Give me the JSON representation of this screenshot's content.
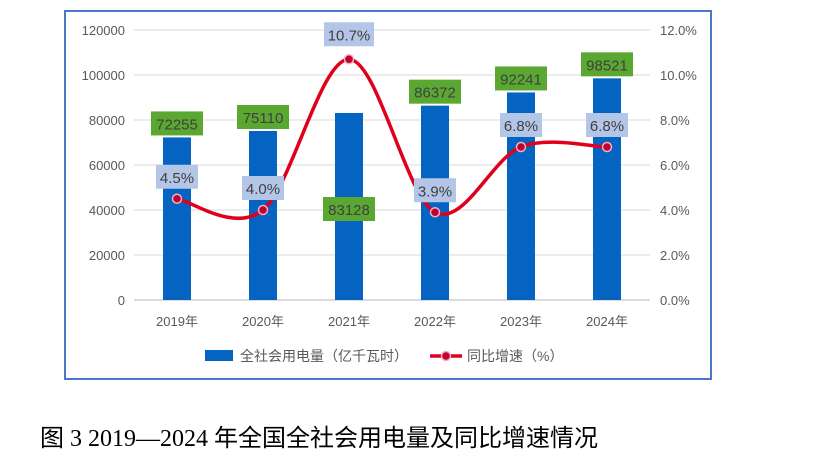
{
  "chart_data": {
    "type": "bar+line",
    "categories": [
      "2019年",
      "2020年",
      "2021年",
      "2022年",
      "2023年",
      "2024年"
    ],
    "series": [
      {
        "name": "全社会用电量（亿千瓦时）",
        "type": "bar",
        "axis": "left",
        "color": "#0563c1",
        "values": [
          72255,
          75110,
          83128,
          86372,
          92241,
          98521
        ],
        "labels": [
          "72255",
          "75110",
          "83128",
          "86372",
          "92241",
          "98521"
        ]
      },
      {
        "name": "同比增速（%）",
        "type": "line",
        "axis": "right",
        "color": "#e0001b",
        "values": [
          4.5,
          4.0,
          10.7,
          3.9,
          6.8,
          6.8
        ],
        "labels": [
          "4.5%",
          "4.0%",
          "10.7%",
          "3.9%",
          "6.8%",
          "6.8%"
        ]
      }
    ],
    "y_left": {
      "ylim": [
        0,
        120000
      ],
      "ticks": [
        "0",
        "20000",
        "40000",
        "60000",
        "80000",
        "100000",
        "120000"
      ]
    },
    "y_right": {
      "ylim": [
        0,
        12
      ],
      "ticks": [
        "0.0%",
        "2.0%",
        "4.0%",
        "6.0%",
        "8.0%",
        "10.0%",
        "12.0%"
      ]
    },
    "grid": true,
    "legend": "bottom"
  },
  "caption": "图 3 2019—2024 年全国全社会用电量及同比增速情况"
}
